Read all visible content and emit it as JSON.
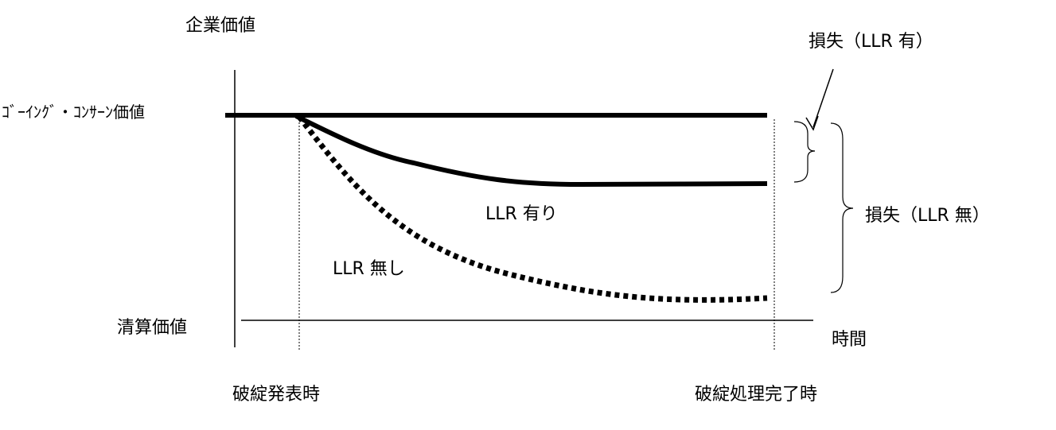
{
  "labels": {
    "y_axis": "企業価値",
    "going_concern": "ｺﾞｰｲﾝｸﾞ・ｺﾝｻｰﾝ価値",
    "liquidation": "清算価値",
    "x_axis": "時間",
    "bankruptcy_announcement": "破綻発表時",
    "resolution_complete": "破綻処理完了時",
    "loss_with_llr": "損失（LLR 有）",
    "loss_without_llr": "損失（LLR 無）",
    "with_llr": "LLR 有り",
    "without_llr": "LLR 無し"
  },
  "colors": {
    "ink": "#000000",
    "background": "#ffffff"
  }
}
